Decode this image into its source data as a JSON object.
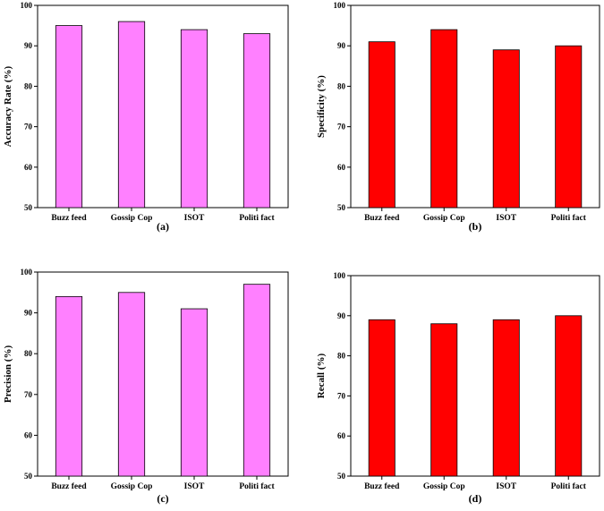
{
  "chart_data": [
    {
      "type": "bar",
      "panel": "(a)",
      "categories": [
        "Buzz feed",
        "Gossip Cop",
        "ISOT",
        "Politi fact"
      ],
      "values": [
        95,
        96,
        94,
        93
      ],
      "ylabel": "Accuracy Rate (%)",
      "xlabel": "",
      "ylim": [
        50,
        100
      ],
      "yticks": [
        50,
        60,
        70,
        80,
        90,
        100
      ],
      "color": "#ff80ff",
      "grid": false
    },
    {
      "type": "bar",
      "panel": "(b)",
      "categories": [
        "Buzz feed",
        "Gossip Cop",
        "ISOT",
        "Politi fact"
      ],
      "values": [
        91,
        94,
        89,
        90
      ],
      "ylabel": "Specificity (%)",
      "xlabel": "",
      "ylim": [
        50,
        100
      ],
      "yticks": [
        50,
        60,
        70,
        80,
        90,
        100
      ],
      "color": "#ff0000",
      "grid": false
    },
    {
      "type": "bar",
      "panel": "(c)",
      "categories": [
        "Buzz feed",
        "Gossip Cop",
        "ISOT",
        "Politi fact"
      ],
      "values": [
        94,
        95,
        91,
        97
      ],
      "ylabel": "Precision (%)",
      "xlabel": "",
      "ylim": [
        50,
        100
      ],
      "yticks": [
        50,
        60,
        70,
        80,
        90,
        100
      ],
      "color": "#ff80ff",
      "grid": false
    },
    {
      "type": "bar",
      "panel": "(d)",
      "categories": [
        "Buzz feed",
        "Gossip Cop",
        "ISOT",
        "Politi fact"
      ],
      "values": [
        89,
        88,
        89,
        90
      ],
      "ylabel": "Recall (%)",
      "xlabel": "",
      "ylim": [
        50,
        100
      ],
      "yticks": [
        50,
        60,
        70,
        80,
        90,
        100
      ],
      "color": "#ff0000",
      "grid": false
    }
  ]
}
